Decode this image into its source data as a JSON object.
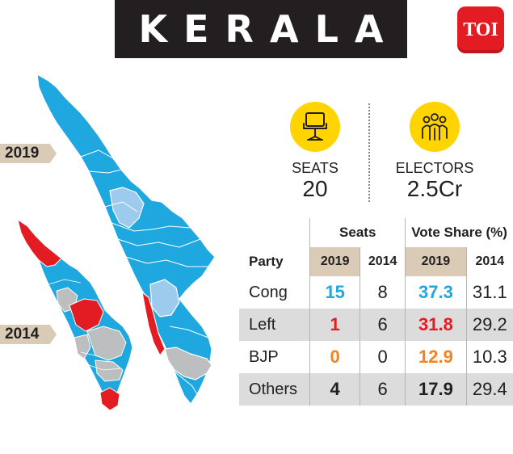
{
  "title": "KERALA",
  "brand": "TOI",
  "years": {
    "top": "2019",
    "bottom": "2014"
  },
  "stats": {
    "seats": {
      "label": "SEATS",
      "value": "20",
      "icon": "chair-icon"
    },
    "electors": {
      "label": "ELECTORS",
      "value": "2.5Cr",
      "icon": "people-icon"
    }
  },
  "table": {
    "group_seats": "Seats",
    "group_vote": "Vote Share (%)",
    "party_header": "Party",
    "year_2019": "2019",
    "year_2014": "2014",
    "rows": [
      {
        "party": "Cong",
        "seats_2019": "15",
        "seats_2014": "8",
        "vote_2019": "37.3",
        "vote_2014": "31.1",
        "color": "#1fa7e0"
      },
      {
        "party": "Left",
        "seats_2019": "1",
        "seats_2014": "6",
        "vote_2019": "31.8",
        "vote_2014": "29.2",
        "color": "#e31b23"
      },
      {
        "party": "BJP",
        "seats_2019": "0",
        "seats_2014": "0",
        "vote_2019": "12.9",
        "vote_2014": "10.3",
        "color": "#f58220"
      },
      {
        "party": "Others",
        "seats_2019": "4",
        "seats_2014": "6",
        "vote_2019": "17.9",
        "vote_2014": "29.4",
        "color": "#231f20"
      }
    ]
  },
  "map_colors": {
    "cong": "#1fa7e0",
    "cong_light": "#9ccbee",
    "left": "#e31b23",
    "bjp_grey": "#bdbec0"
  }
}
